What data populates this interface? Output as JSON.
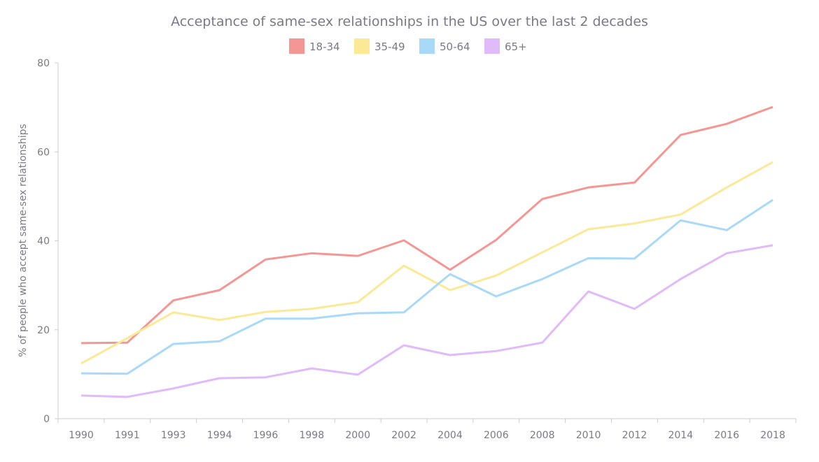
{
  "chart_data": {
    "type": "line",
    "title": "Acceptance of same-sex relationships in the US over the last 2 decades",
    "xlabel": "",
    "ylabel": "% of people who accept same-sex relationships",
    "ylim": [
      0,
      80
    ],
    "yticks": [
      0,
      20,
      40,
      60,
      80
    ],
    "grid": false,
    "legend_position": "top",
    "categories": [
      "1990",
      "1991",
      "1993",
      "1994",
      "1996",
      "1998",
      "2000",
      "2002",
      "2004",
      "2006",
      "2008",
      "2010",
      "2012",
      "2014",
      "2016",
      "2018"
    ],
    "series": [
      {
        "name": "18-34",
        "color": "#f49693",
        "values": [
          17.0,
          17.1,
          26.6,
          28.9,
          35.8,
          37.2,
          36.6,
          40.1,
          33.5,
          40.2,
          49.4,
          52.0,
          53.1,
          63.8,
          66.3,
          70.1
        ]
      },
      {
        "name": "35-49",
        "color": "#fbe995",
        "values": [
          12.4,
          18.1,
          23.9,
          22.2,
          24.0,
          24.7,
          26.2,
          34.4,
          28.9,
          32.2,
          37.4,
          42.6,
          43.9,
          45.9,
          52.0,
          57.7
        ]
      },
      {
        "name": "50-64",
        "color": "#a9d9f8",
        "values": [
          10.2,
          10.1,
          16.8,
          17.4,
          22.5,
          22.5,
          23.7,
          23.9,
          32.5,
          27.5,
          31.4,
          36.1,
          36.0,
          44.6,
          42.4,
          49.2
        ]
      },
      {
        "name": "65+",
        "color": "#e0baf9",
        "values": [
          5.2,
          4.9,
          6.8,
          9.1,
          9.3,
          11.3,
          9.9,
          16.5,
          14.3,
          15.2,
          17.1,
          28.6,
          24.7,
          31.4,
          37.2,
          39.0
        ]
      }
    ]
  }
}
